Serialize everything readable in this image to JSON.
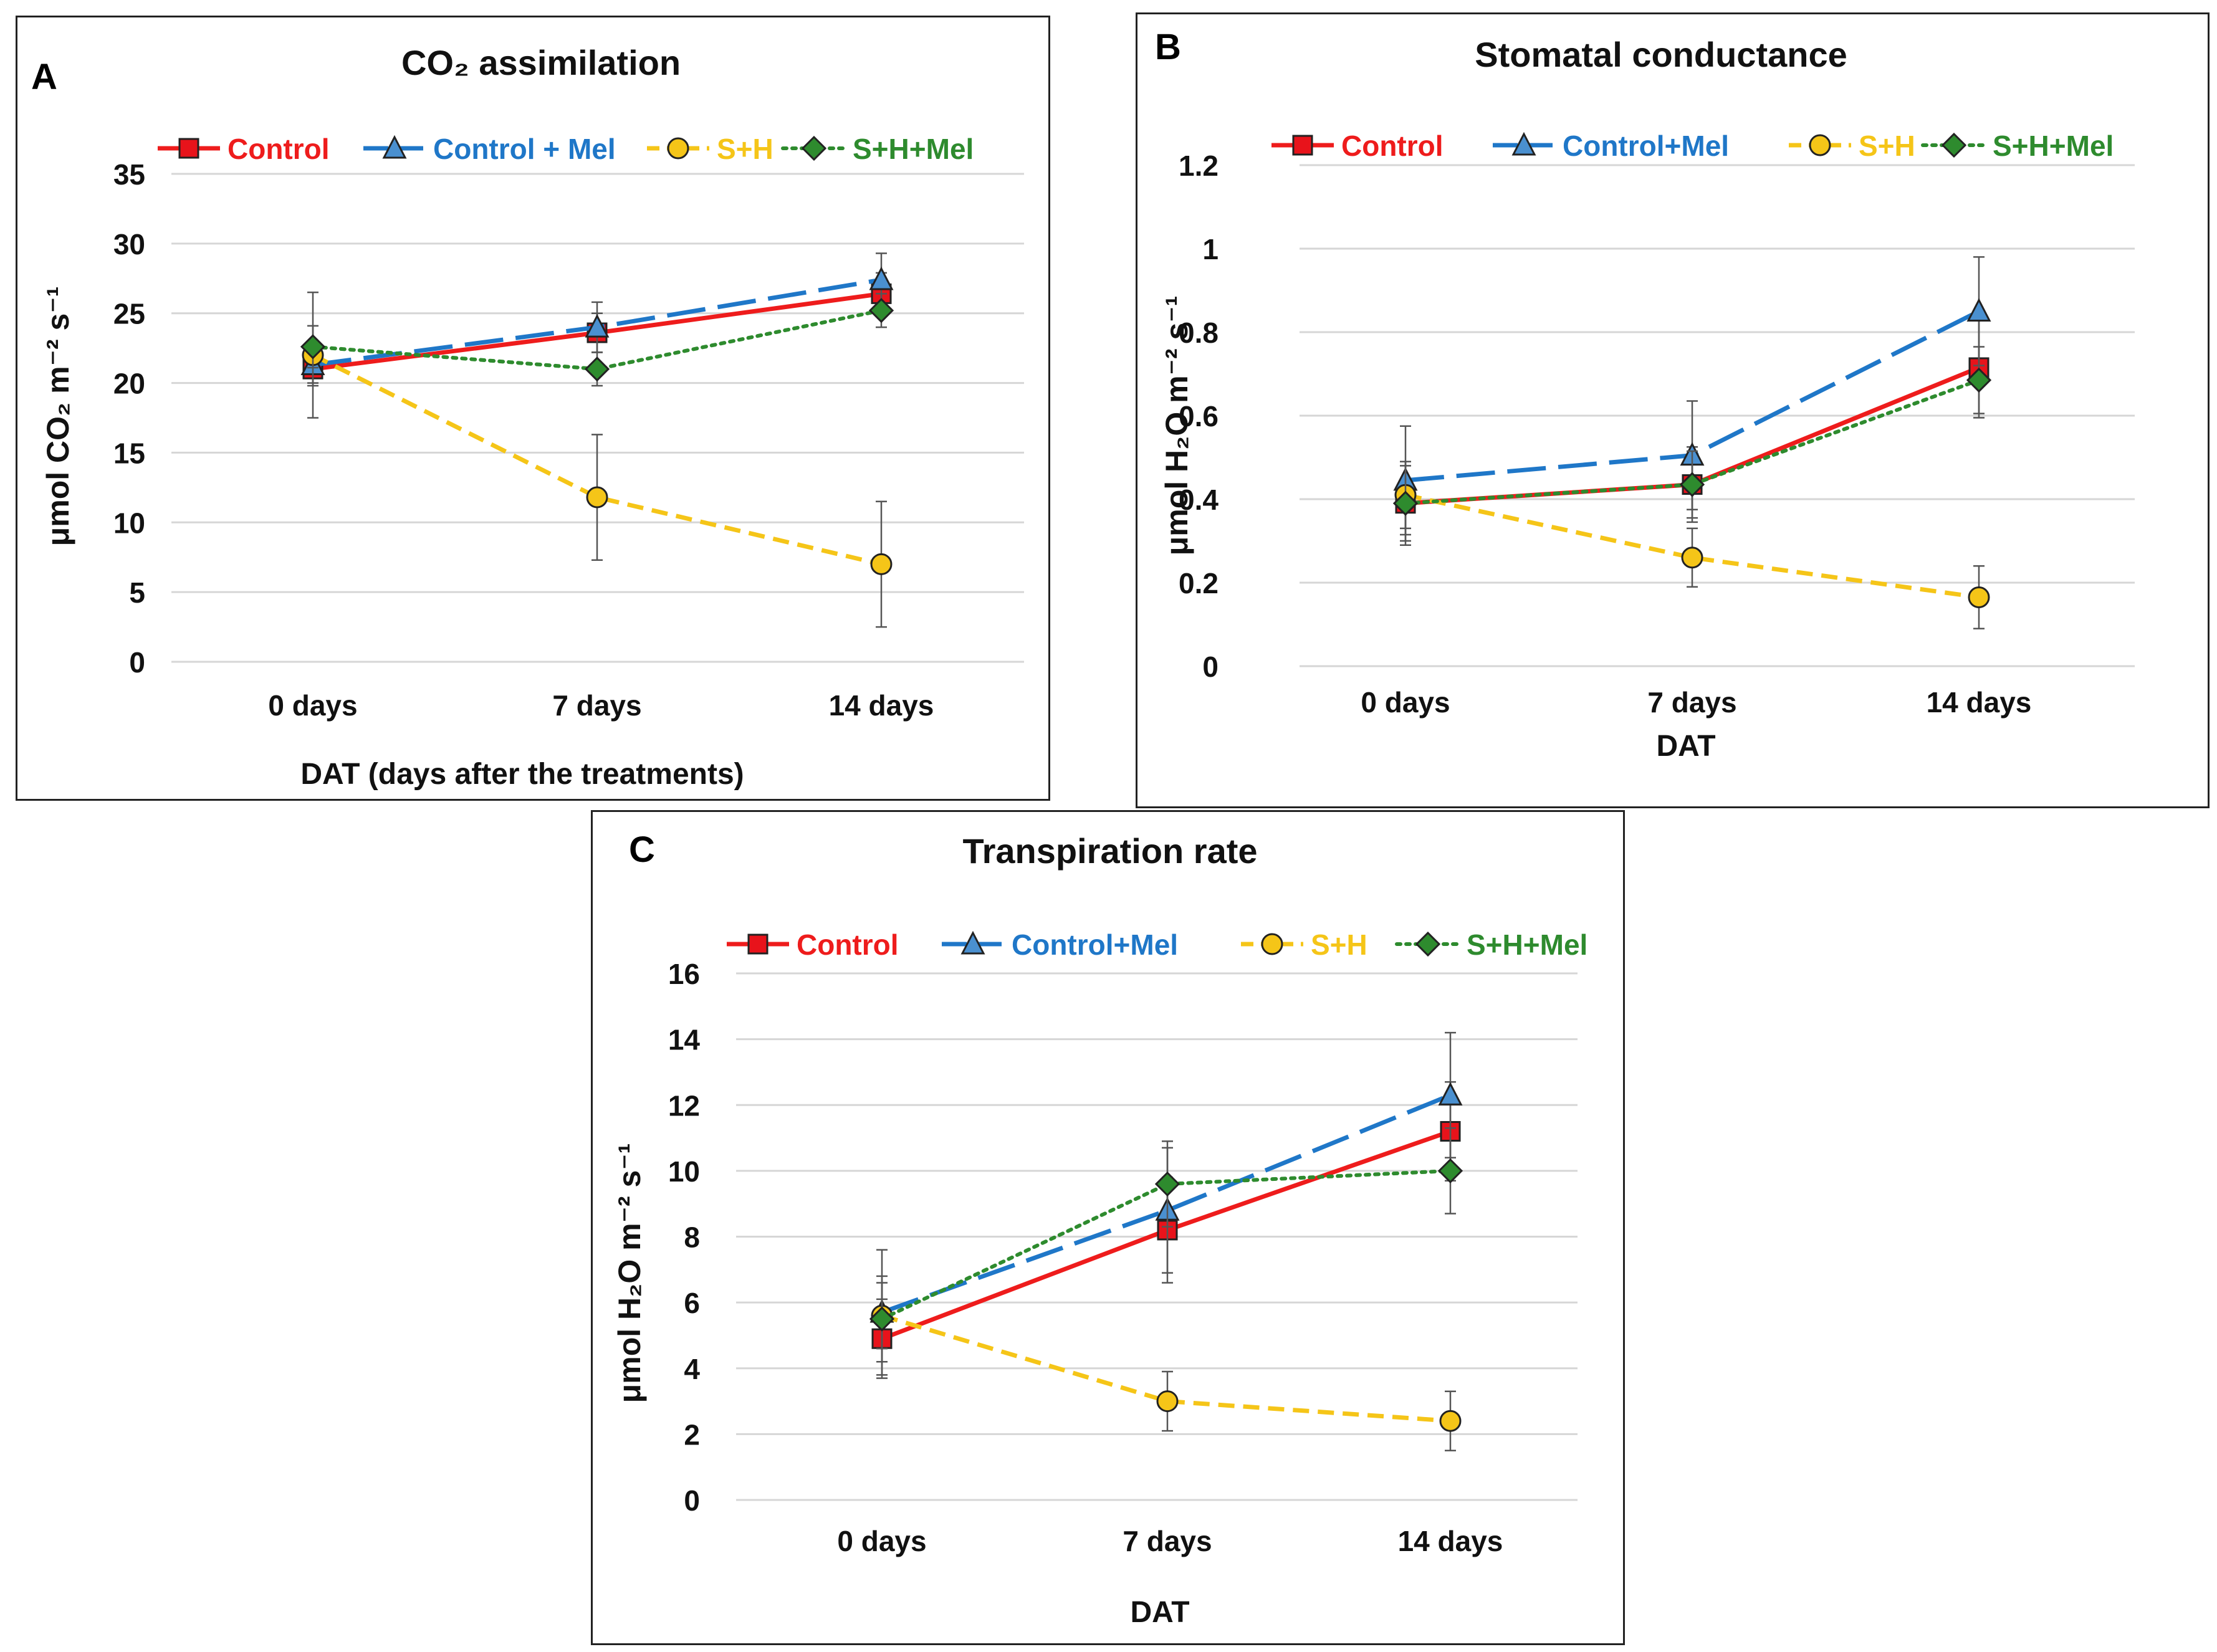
{
  "series_style": [
    {
      "name": "Control",
      "color": "#ee1c1c",
      "dash": "",
      "marker": "square",
      "marker_fill": "#e8131b"
    },
    {
      "name": "Control+Mel",
      "color": "#1f77c8",
      "dash": "62 20",
      "marker": "triangle",
      "marker_fill": "#4a90d0"
    },
    {
      "name": "S+H",
      "color": "#f5c518",
      "dash": "26 14",
      "marker": "circle",
      "marker_fill": "#f5c518"
    },
    {
      "name": "S+H+Mel",
      "color": "#2e8b2e",
      "dash": "6 9",
      "marker": "diamond",
      "marker_fill": "#2e8b2e"
    }
  ],
  "chart_data": [
    {
      "type": "line",
      "panel_letter": "A",
      "title": "CO₂ assimilation",
      "ylabel": "μmol CO₂ m⁻² s⁻¹",
      "xlabel": "DAT (days after the treatments)",
      "categories": [
        "0 days",
        "7 days",
        "14 days"
      ],
      "ylim": [
        0,
        35
      ],
      "yticks": [
        0,
        5,
        10,
        15,
        20,
        25,
        30,
        35
      ],
      "legend": [
        "Control",
        "Control + Mel",
        "S+H",
        "S+H+Mel"
      ],
      "series": [
        {
          "name": "Control",
          "values": [
            21,
            23.6,
            26.4
          ],
          "err": [
            1.2,
            1.4,
            1.5
          ]
        },
        {
          "name": "Control + Mel",
          "values": [
            21.3,
            24,
            27.4
          ],
          "err": [
            1.3,
            1.8,
            1.9
          ]
        },
        {
          "name": "S+H",
          "values": [
            22,
            11.8,
            7
          ],
          "err": [
            4.5,
            4.5,
            4.5
          ]
        },
        {
          "name": "S+H+Mel",
          "values": [
            22.6,
            21,
            25.2
          ],
          "err": [
            1.5,
            1.2,
            1.2
          ]
        }
      ]
    },
    {
      "type": "line",
      "panel_letter": "B",
      "title": "Stomatal conductance",
      "ylabel": "μmol H₂O m⁻² s⁻¹",
      "xlabel": "DAT",
      "categories": [
        "0 days",
        "7 days",
        "14 days"
      ],
      "ylim": [
        0,
        1.2
      ],
      "yticks": [
        0,
        0.2,
        0.4,
        0.6,
        0.8,
        1,
        1.2
      ],
      "legend": [
        "Control",
        "Control+Mel",
        "S+H",
        "S+H+Mel"
      ],
      "series": [
        {
          "name": "Control",
          "values": [
            0.39,
            0.435,
            0.715
          ],
          "err": [
            0.09,
            0.09,
            0.12
          ]
        },
        {
          "name": "Control+Mel",
          "values": [
            0.445,
            0.505,
            0.85
          ],
          "err": [
            0.13,
            0.13,
            0.13
          ]
        },
        {
          "name": "S+H",
          "values": [
            0.41,
            0.26,
            0.165
          ],
          "err": [
            0.08,
            0.07,
            0.075
          ]
        },
        {
          "name": "S+H+Mel",
          "values": [
            0.39,
            0.435,
            0.685
          ],
          "err": [
            0.1,
            0.08,
            0.08
          ]
        }
      ]
    },
    {
      "type": "line",
      "panel_letter": "C",
      "title": "Transpiration rate",
      "ylabel": "μmol H₂O m⁻² s⁻¹",
      "xlabel": "DAT",
      "categories": [
        "0 days",
        "7 days",
        "14 days"
      ],
      "ylim": [
        0,
        16
      ],
      "yticks": [
        0,
        2,
        4,
        6,
        8,
        10,
        12,
        14,
        16
      ],
      "legend": [
        "Control",
        "Control+Mel",
        "S+H",
        "S+H+Mel"
      ],
      "series": [
        {
          "name": "Control",
          "values": [
            4.9,
            8.2,
            11.2
          ],
          "err": [
            1.2,
            1.6,
            1.5
          ]
        },
        {
          "name": "Control+Mel",
          "values": [
            5.7,
            8.8,
            12.3
          ],
          "err": [
            1.9,
            1.9,
            1.9
          ]
        },
        {
          "name": "S+H",
          "values": [
            5.6,
            3,
            2.4
          ],
          "err": [
            1,
            0.9,
            0.9
          ]
        },
        {
          "name": "S+H+Mel",
          "values": [
            5.5,
            9.6,
            10
          ],
          "err": [
            1.3,
            1.3,
            1.3
          ]
        }
      ]
    }
  ]
}
